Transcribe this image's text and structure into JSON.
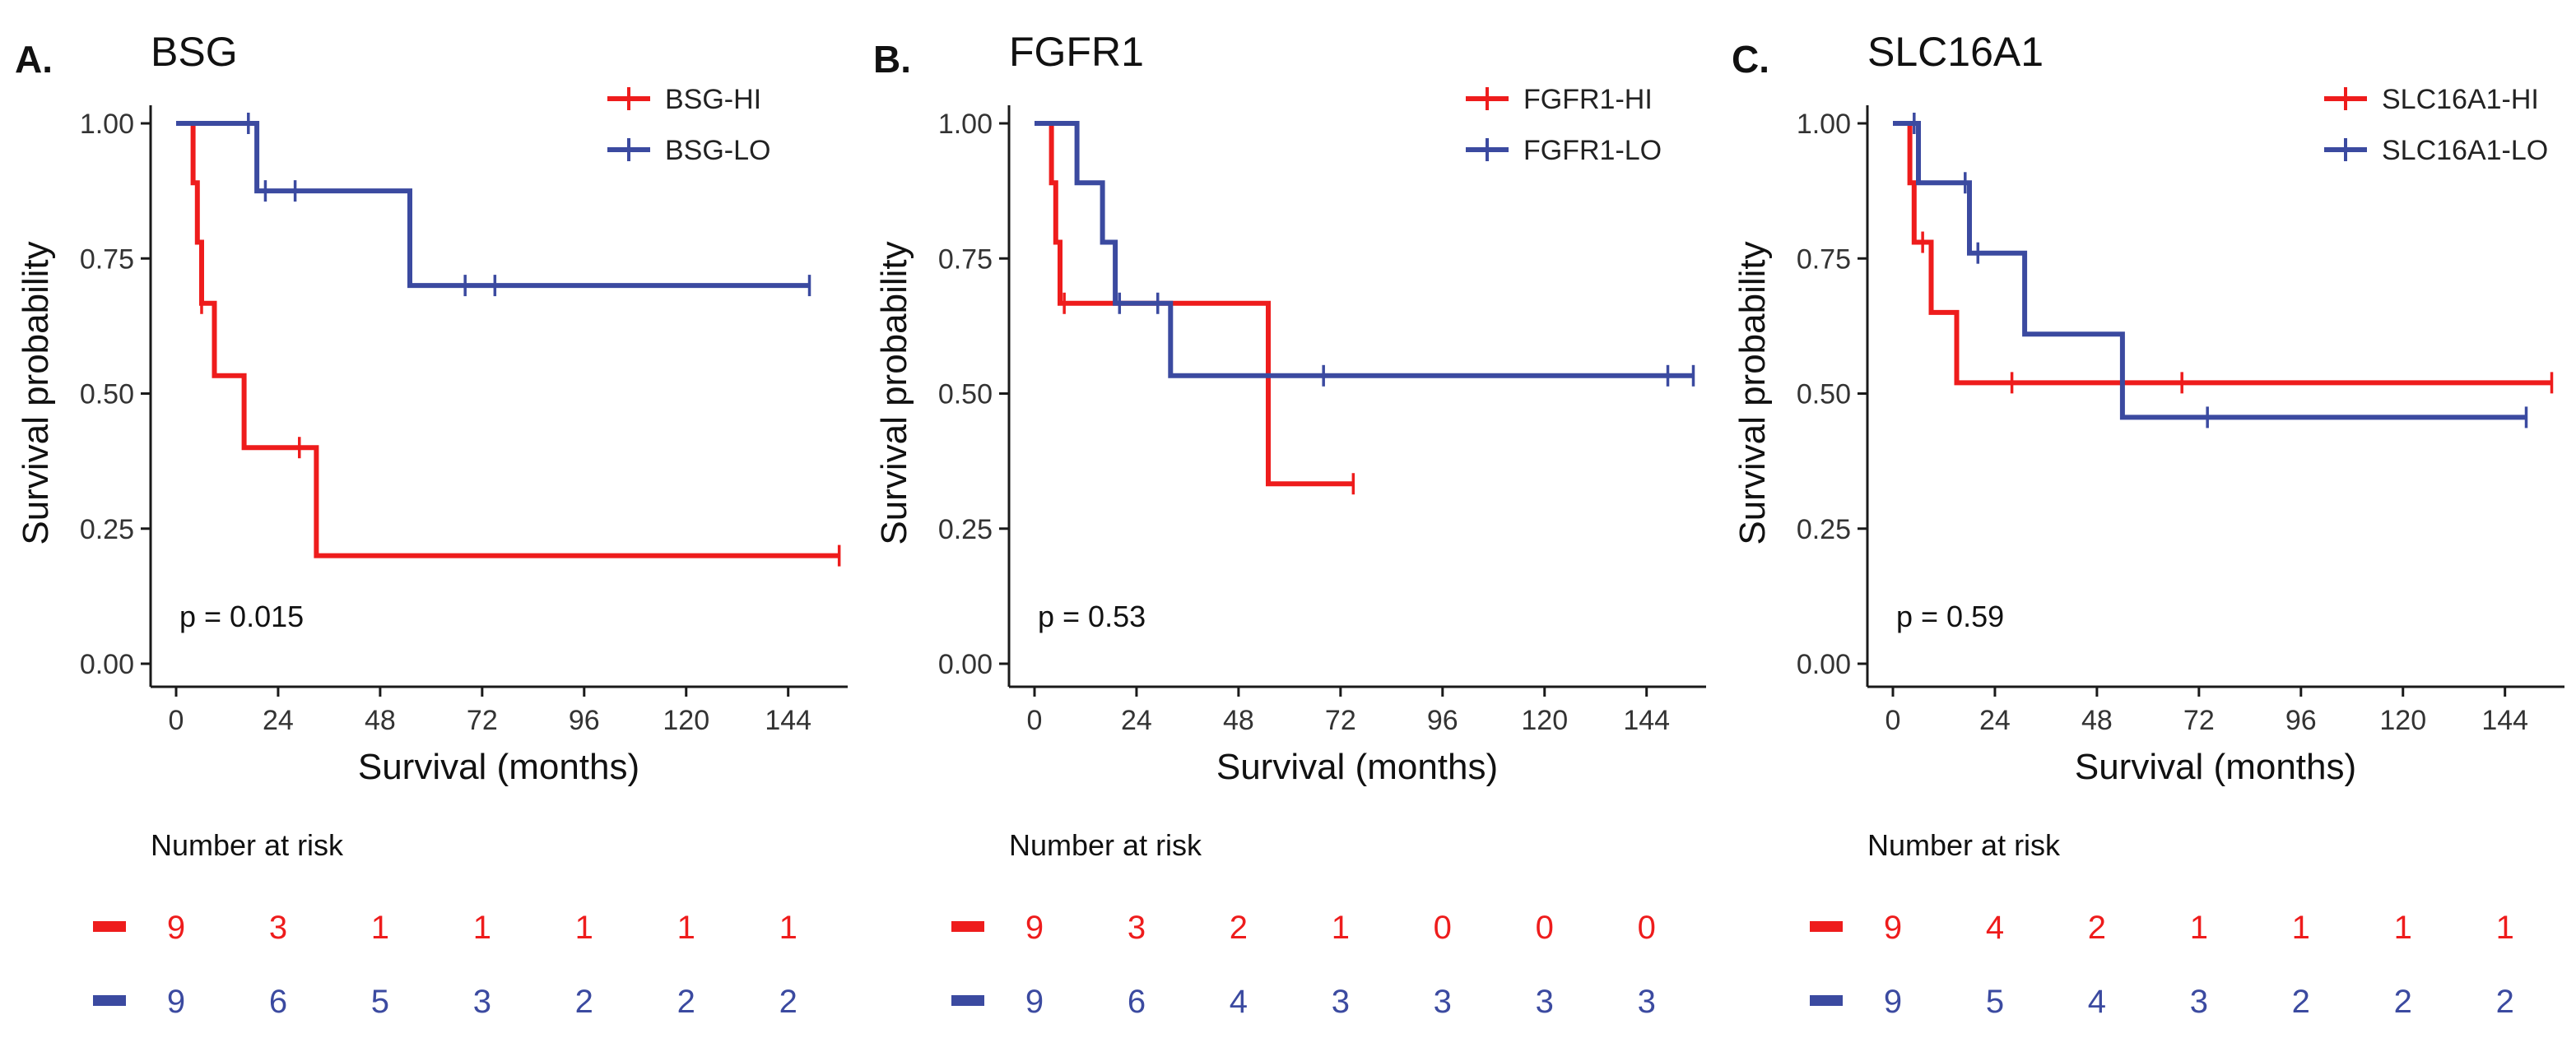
{
  "figure": {
    "x_ticks": [
      0,
      24,
      48,
      72,
      96,
      120,
      144
    ],
    "y_ticks": [
      "0.00",
      "0.25",
      "0.50",
      "0.75",
      "1.00"
    ],
    "xlabel": "Survival (months)",
    "ylabel": "Survival probability",
    "risk_title": "Number at risk"
  },
  "colors": {
    "hi": "#ee1c1c",
    "lo": "#3b4aa0",
    "axis": "#1a1a1a"
  },
  "chart_data": [
    {
      "type": "line",
      "panel_label": "A.",
      "title": "BSG",
      "xlabel": "Survival (months)",
      "ylabel": "Survival probability",
      "xlim": [
        -6,
        158
      ],
      "ylim": [
        0,
        1
      ],
      "p_value": "p = 0.015",
      "series": [
        {
          "name": "BSG-HI",
          "color": "#ee1c1c",
          "steps": [
            [
              0,
              1.0
            ],
            [
              4,
              1.0
            ],
            [
              4,
              0.89
            ],
            [
              5,
              0.89
            ],
            [
              5,
              0.78
            ],
            [
              6,
              0.78
            ],
            [
              6,
              0.667
            ],
            [
              9,
              0.667
            ],
            [
              9,
              0.533
            ],
            [
              16,
              0.533
            ],
            [
              16,
              0.4
            ],
            [
              33,
              0.4
            ],
            [
              33,
              0.2
            ],
            [
              156,
              0.2
            ]
          ],
          "censors": [
            [
              6,
              0.667
            ],
            [
              29,
              0.4
            ],
            [
              156,
              0.2
            ]
          ],
          "risk": [
            9,
            3,
            1,
            1,
            1,
            1,
            1
          ]
        },
        {
          "name": "BSG-LO",
          "color": "#3b4aa0",
          "steps": [
            [
              0,
              1.0
            ],
            [
              19,
              1.0
            ],
            [
              19,
              0.875
            ],
            [
              55,
              0.875
            ],
            [
              55,
              0.7
            ],
            [
              149,
              0.7
            ]
          ],
          "censors": [
            [
              17,
              1.0
            ],
            [
              21,
              0.875
            ],
            [
              28,
              0.875
            ],
            [
              68,
              0.7
            ],
            [
              75,
              0.7
            ],
            [
              149,
              0.7
            ]
          ],
          "risk": [
            9,
            6,
            5,
            3,
            2,
            2,
            2
          ]
        }
      ]
    },
    {
      "type": "line",
      "panel_label": "B.",
      "title": "FGFR1",
      "xlabel": "Survival (months)",
      "ylabel": "Survival probability",
      "xlim": [
        -6,
        158
      ],
      "ylim": [
        0,
        1
      ],
      "p_value": "p = 0.53",
      "series": [
        {
          "name": "FGFR1-HI",
          "color": "#ee1c1c",
          "steps": [
            [
              0,
              1.0
            ],
            [
              4,
              1.0
            ],
            [
              4,
              0.89
            ],
            [
              5,
              0.89
            ],
            [
              5,
              0.78
            ],
            [
              6,
              0.78
            ],
            [
              6,
              0.667
            ],
            [
              55,
              0.667
            ],
            [
              55,
              0.333
            ],
            [
              75,
              0.333
            ]
          ],
          "censors": [
            [
              7,
              0.667
            ],
            [
              75,
              0.333
            ]
          ],
          "risk": [
            9,
            3,
            2,
            1,
            0,
            0,
            0
          ]
        },
        {
          "name": "FGFR1-LO",
          "color": "#3b4aa0",
          "steps": [
            [
              0,
              1.0
            ],
            [
              10,
              1.0
            ],
            [
              10,
              0.89
            ],
            [
              16,
              0.89
            ],
            [
              16,
              0.78
            ],
            [
              19,
              0.78
            ],
            [
              19,
              0.667
            ],
            [
              32,
              0.667
            ],
            [
              32,
              0.533
            ],
            [
              155,
              0.533
            ]
          ],
          "censors": [
            [
              20,
              0.667
            ],
            [
              29,
              0.667
            ],
            [
              68,
              0.533
            ],
            [
              149,
              0.533
            ],
            [
              155,
              0.533
            ]
          ],
          "risk": [
            9,
            6,
            4,
            3,
            3,
            3,
            3
          ]
        }
      ]
    },
    {
      "type": "line",
      "panel_label": "C.",
      "title": "SLC16A1",
      "xlabel": "Survival (months)",
      "ylabel": "Survival probability",
      "xlim": [
        -6,
        158
      ],
      "ylim": [
        0,
        1
      ],
      "p_value": "p = 0.59",
      "series": [
        {
          "name": "SLC16A1-HI",
          "color": "#ee1c1c",
          "steps": [
            [
              0,
              1.0
            ],
            [
              4,
              1.0
            ],
            [
              4,
              0.89
            ],
            [
              5,
              0.89
            ],
            [
              5,
              0.78
            ],
            [
              9,
              0.78
            ],
            [
              9,
              0.65
            ],
            [
              15,
              0.65
            ],
            [
              15,
              0.52
            ],
            [
              155,
              0.52
            ]
          ],
          "censors": [
            [
              7,
              0.78
            ],
            [
              28,
              0.52
            ],
            [
              68,
              0.52
            ],
            [
              155,
              0.52
            ]
          ],
          "risk": [
            9,
            4,
            2,
            1,
            1,
            1,
            1
          ]
        },
        {
          "name": "SLC16A1-LO",
          "color": "#3b4aa0",
          "steps": [
            [
              0,
              1.0
            ],
            [
              6,
              1.0
            ],
            [
              6,
              0.89
            ],
            [
              18,
              0.89
            ],
            [
              18,
              0.76
            ],
            [
              31,
              0.76
            ],
            [
              31,
              0.61
            ],
            [
              54,
              0.61
            ],
            [
              54,
              0.456
            ],
            [
              149,
              0.456
            ]
          ],
          "censors": [
            [
              5,
              1.0
            ],
            [
              17,
              0.89
            ],
            [
              20,
              0.76
            ],
            [
              74,
              0.456
            ],
            [
              149,
              0.456
            ]
          ],
          "risk": [
            9,
            5,
            4,
            3,
            2,
            2,
            2
          ]
        }
      ]
    }
  ]
}
